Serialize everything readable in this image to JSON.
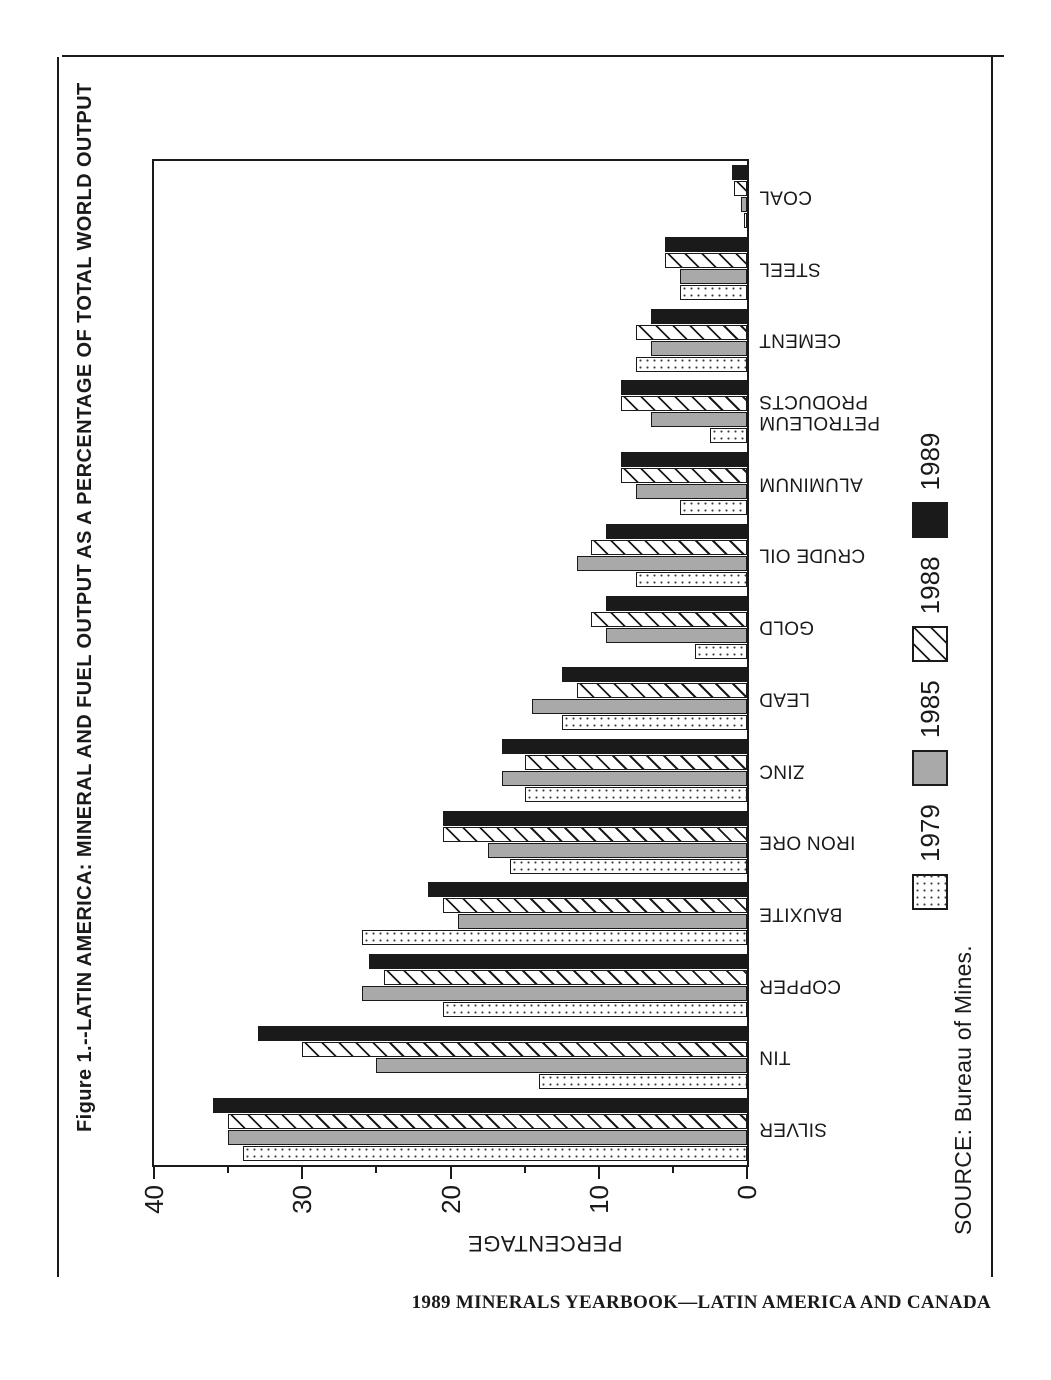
{
  "page": {
    "footer": "1989 MINERALS YEARBOOK—LATIN AMERICA AND CANADA"
  },
  "figure": {
    "title": "Figure 1.--LATIN AMERICA: MINERAL AND FUEL OUTPUT AS A PERCENTAGE OF TOTAL WORLD OUTPUT",
    "source": "SOURCE: Bureau of Mines.",
    "y_axis_label": "PERCENTAGE"
  },
  "legend": {
    "items": [
      {
        "label": "1979",
        "pattern": "dotted"
      },
      {
        "label": "1985",
        "pattern": "gray"
      },
      {
        "label": "1988",
        "pattern": "hatched"
      },
      {
        "label": "1989",
        "pattern": "black"
      }
    ]
  },
  "chart_data": {
    "type": "bar",
    "title": "Figure 1.--LATIN AMERICA: MINERAL AND FUEL OUTPUT AS A PERCENTAGE OF TOTAL WORLD OUTPUT",
    "note": "grouped vertical bar chart printed rotated 90° counterclockwise on the page",
    "xlabel": "",
    "ylabel": "PERCENTAGE",
    "ylim": [
      0,
      40
    ],
    "yticks_major": [
      0,
      10,
      20,
      30,
      40
    ],
    "yticks_minor": [
      5,
      15,
      25,
      35
    ],
    "grid": false,
    "legend_position": "bottom",
    "categories": [
      "SILVER",
      "TIN",
      "COPPER",
      "BAUXITE",
      "IRON ORE",
      "ZINC",
      "LEAD",
      "GOLD",
      "CRUDE OIL",
      "ALUMINUM",
      "PETROLEUM\nPRODUCTS",
      "CEMENT",
      "STEEL",
      "COAL"
    ],
    "series": [
      {
        "name": "1979",
        "pattern": "dotted",
        "values": [
          34,
          14,
          20.5,
          26,
          16,
          15,
          12.5,
          3.5,
          7.5,
          4.5,
          2.5,
          7.5,
          4.5,
          0.2
        ]
      },
      {
        "name": "1985",
        "pattern": "gray",
        "values": [
          35,
          25,
          26,
          19.5,
          17.5,
          16.5,
          14.5,
          9.5,
          11.5,
          7.5,
          6.5,
          6.5,
          4.5,
          0.4
        ]
      },
      {
        "name": "1988",
        "pattern": "hatched",
        "values": [
          35,
          30,
          24.5,
          20.5,
          20.5,
          15,
          11.5,
          10.5,
          10.5,
          8.5,
          8.5,
          7.5,
          5.5,
          0.9
        ]
      },
      {
        "name": "1989",
        "pattern": "black",
        "values": [
          36,
          33,
          25.5,
          21.5,
          20.5,
          16.5,
          12.5,
          9.5,
          9.5,
          8.5,
          8.5,
          6.5,
          5.5,
          1.0
        ]
      }
    ]
  },
  "colors": {
    "ink": "#1a1a1a",
    "bar_gray": "#a9a9a9",
    "paper": "#ffffff"
  }
}
